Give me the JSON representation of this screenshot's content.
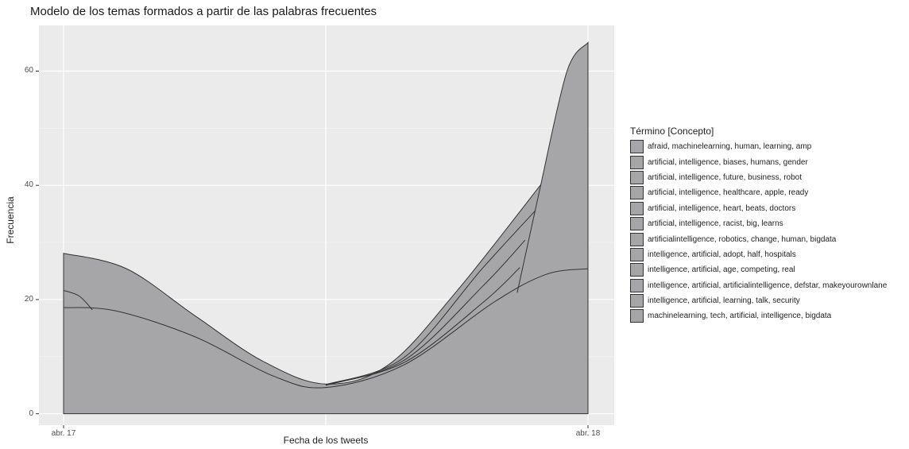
{
  "chart_data": {
    "type": "area",
    "title": "Modelo de los temas formados a partir de las palabras frecuentes",
    "xlabel": "Fecha de los tweets",
    "ylabel": "Frecuencia",
    "x_ticks": [
      "abr. 17",
      "abr. 18"
    ],
    "y_ticks": [
      0,
      20,
      40,
      60
    ],
    "ylim": [
      -2,
      68
    ],
    "stacked": true,
    "fill_color": "#a6a6a9",
    "outline_color": "#333333",
    "background_color": "#ebebeb",
    "grid": true,
    "legend_title": "Término [Concepto]",
    "legend_position": "right",
    "series": [
      {
        "name": "afraid, machinelearning, human, learning, amp"
      },
      {
        "name": "artificial, intelligence, biases, humans, gender"
      },
      {
        "name": "artificial, intelligence, future, business, robot"
      },
      {
        "name": "artificial, intelligence, healthcare, apple, ready"
      },
      {
        "name": "artificial, intelligence, heart, beats, doctors"
      },
      {
        "name": "artificial, intelligence, racist, big, learns"
      },
      {
        "name": "artificialintelligence, robotics, change, human, bigdata"
      },
      {
        "name": "intelligence, artificial, adopt, half, hospitals"
      },
      {
        "name": "intelligence, artificial, age, competing, real"
      },
      {
        "name": "intelligence, artificial, artificialintelligence, defstar, makeyourownlane"
      },
      {
        "name": "intelligence, artificial, learning, talk, security"
      },
      {
        "name": "machinelearning, tech, artificial, intelligence, bigdata"
      }
    ],
    "stack_boundaries": [
      {
        "x": [
          0,
          0.5,
          1
        ],
        "y": [
          18.6,
          4.6,
          25.4
        ]
      },
      {
        "x": [
          0,
          0.05,
          0.5,
          0.87
        ],
        "y": [
          21.6,
          18.2,
          4.8,
          21.2
        ]
      },
      {
        "x": [
          0,
          0.5,
          0.87
        ],
        "y": [
          28.1,
          5.2,
          25.6
        ]
      },
      {
        "x": [
          0.5,
          0.88
        ],
        "y": [
          5.2,
          30.4
        ]
      },
      {
        "x": [
          0.5,
          0.9
        ],
        "y": [
          5.2,
          35.6
        ]
      },
      {
        "x": [
          0.5,
          0.91,
          1
        ],
        "y": [
          5.2,
          40.1,
          65.0
        ]
      }
    ]
  }
}
